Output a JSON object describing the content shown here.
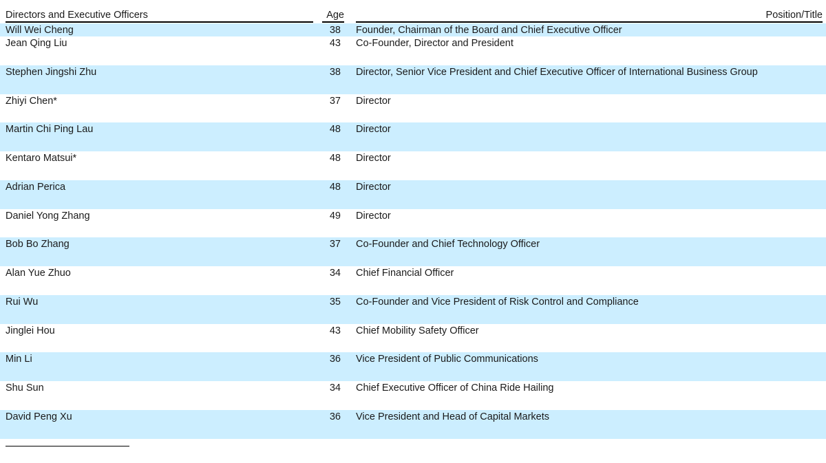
{
  "table": {
    "headers": {
      "name": "Directors and Executive Officers",
      "age": "Age",
      "position": "Position/Title"
    },
    "rows": [
      {
        "name": "Will Wei Cheng",
        "age": "38",
        "position": "Founder, Chairman of the Board and Chief Executive Officer"
      },
      {
        "name": "Jean Qing Liu",
        "age": "43",
        "position": "Co-Founder, Director and President"
      },
      {
        "name": "Stephen Jingshi Zhu",
        "age": "38",
        "position": "Director, Senior Vice President and Chief Executive Officer of International Business Group"
      },
      {
        "name": "Zhiyi Chen*",
        "age": "37",
        "position": "Director"
      },
      {
        "name": "Martin Chi Ping Lau",
        "age": "48",
        "position": "Director"
      },
      {
        "name": "Kentaro Matsui*",
        "age": "48",
        "position": "Director"
      },
      {
        "name": "Adrian Perica",
        "age": "48",
        "position": "Director"
      },
      {
        "name": "Daniel Yong Zhang",
        "age": "49",
        "position": "Director"
      },
      {
        "name": "Bob Bo Zhang",
        "age": "37",
        "position": "Co-Founder and Chief Technology Officer"
      },
      {
        "name": "Alan Yue Zhuo",
        "age": "34",
        "position": "Chief Financial Officer"
      },
      {
        "name": "Rui Wu",
        "age": "35",
        "position": "Co-Founder and Vice President of Risk Control and Compliance"
      },
      {
        "name": "Jinglei Hou",
        "age": "43",
        "position": "Chief Mobility Safety Officer"
      },
      {
        "name": "Min Li",
        "age": "36",
        "position": "Vice President of Public Communications"
      },
      {
        "name": "Shu Sun",
        "age": "34",
        "position": "Chief Executive Officer of China Ride Hailing"
      },
      {
        "name": "David Peng Xu",
        "age": "36",
        "position": "Vice President and Head of Capital Markets"
      }
    ]
  },
  "colors": {
    "shade": "#cceeff"
  }
}
